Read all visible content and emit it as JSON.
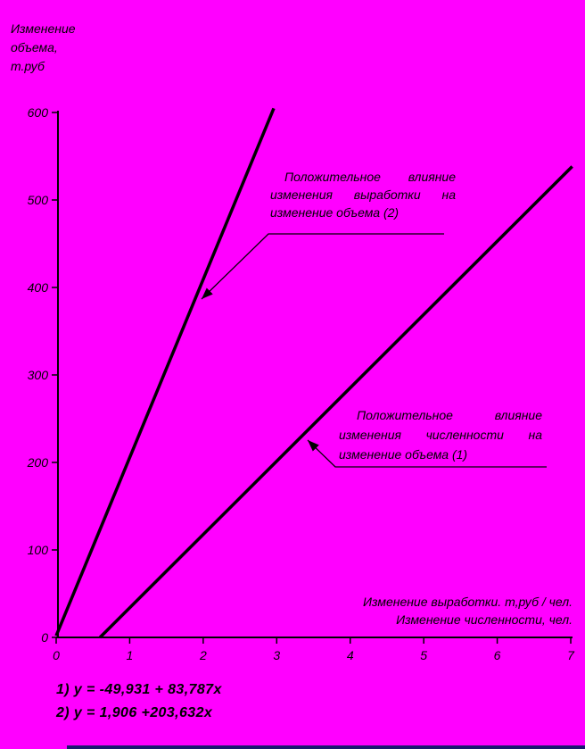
{
  "colors": {
    "background": "#FF00FF",
    "ink": "#000000",
    "bottom_strip": "#191970"
  },
  "y_axis_title_lines": [
    "Изменение",
    "объема,",
    "т.руб"
  ],
  "x_axis_title_lines": [
    "Изменение выработки. т,руб / чел.",
    "Изменение численности, чел."
  ],
  "annotations": {
    "productivity": {
      "line1": "Положительное влияние",
      "line2": "изменения выработки на",
      "line3": "изменение объема (2)"
    },
    "headcount": {
      "line1": "Положительное влияние",
      "line2": "изменения численности на",
      "line3": "изменение объема (1)"
    }
  },
  "equations": {
    "eq1": "1) y = -49,931 + 83,787x",
    "eq2": "2) y = 1,906 +203,632x"
  },
  "chart_data": {
    "type": "line",
    "title": "",
    "ylabel": "Изменение объема, т.руб",
    "xlabel": "Изменение выработки. т,руб / чел. | Изменение численности, чел.",
    "xlim": [
      0,
      7
    ],
    "ylim": [
      0,
      600
    ],
    "x_ticks": [
      0,
      1,
      2,
      3,
      4,
      5,
      6,
      7
    ],
    "y_ticks": [
      0,
      100,
      200,
      300,
      400,
      500,
      600
    ],
    "grid": false,
    "legend_position": "none",
    "series": [
      {
        "name": "Положительное влияние изменения численности на изменение объема (1)",
        "equation": "y = -49,931 + 83,787x",
        "intercept": -49.931,
        "slope": 83.787,
        "points": [
          [
            0.596,
            0
          ],
          [
            7.02,
            538.3
          ]
        ]
      },
      {
        "name": "Положительное влияние изменения выработки на изменение объема (2)",
        "equation": "y = 1,906 + 203,632x",
        "intercept": 1.906,
        "slope": 203.632,
        "points": [
          [
            0,
            1.9
          ],
          [
            2.96,
            604.7
          ]
        ]
      }
    ]
  }
}
